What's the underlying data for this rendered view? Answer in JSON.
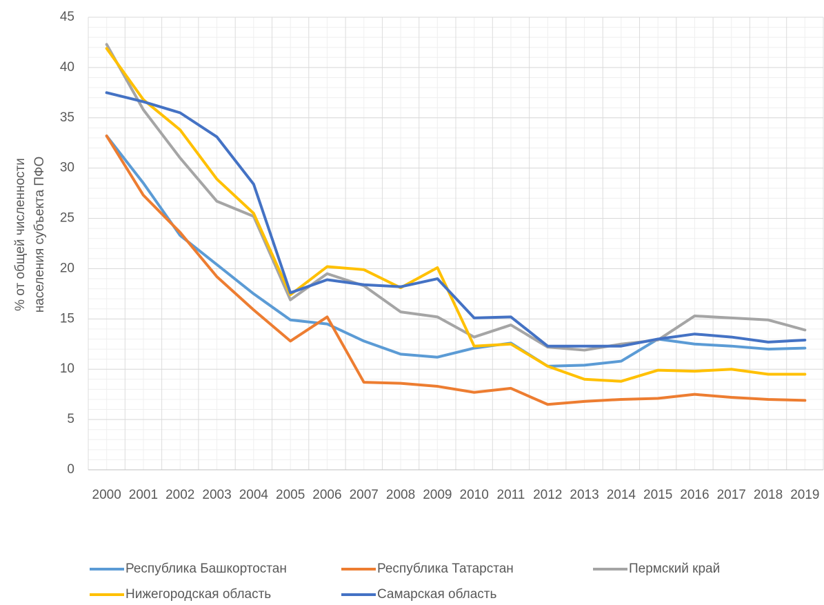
{
  "chart_data": {
    "type": "line",
    "ylabel": [
      "% от общей численности",
      "населения субъекта ПФО"
    ],
    "categories": [
      "2000",
      "2001",
      "2002",
      "2003",
      "2004",
      "2005",
      "2006",
      "2007",
      "2008",
      "2009",
      "2010",
      "2011",
      "2012",
      "2013",
      "2014",
      "2015",
      "2016",
      "2017",
      "2018",
      "2019"
    ],
    "series": [
      {
        "name": "Республика Башкортостан",
        "color": "#5b9bd5",
        "values": [
          33.2,
          28.5,
          23.3,
          20.4,
          17.5,
          14.9,
          14.5,
          12.8,
          11.5,
          11.2,
          12.1,
          12.6,
          10.3,
          10.4,
          10.8,
          13.0,
          12.5,
          12.3,
          12.0,
          12.1
        ]
      },
      {
        "name": "Республика Татарстан",
        "color": "#ed7d31",
        "values": [
          33.2,
          27.3,
          23.6,
          19.2,
          15.9,
          12.8,
          15.2,
          8.7,
          8.6,
          8.3,
          7.7,
          8.1,
          6.5,
          6.8,
          7.0,
          7.1,
          7.5,
          7.2,
          7.0,
          6.9
        ]
      },
      {
        "name": "Пермский край",
        "color": "#a5a5a5",
        "values": [
          42.3,
          35.8,
          31.0,
          26.7,
          25.2,
          16.9,
          19.5,
          18.3,
          15.7,
          15.2,
          13.2,
          14.4,
          12.2,
          11.9,
          12.5,
          12.9,
          15.3,
          15.1,
          14.9,
          13.9
        ]
      },
      {
        "name": "Нижегородская область",
        "color": "#ffc000",
        "values": [
          41.9,
          36.8,
          33.8,
          28.9,
          25.5,
          17.4,
          20.2,
          19.9,
          18.1,
          20.1,
          12.3,
          12.5,
          10.3,
          9.0,
          8.8,
          9.9,
          9.8,
          10.0,
          9.5,
          9.5
        ]
      },
      {
        "name": "Самарская область",
        "color": "#4472c4",
        "values": [
          37.5,
          36.6,
          35.5,
          33.1,
          28.4,
          17.6,
          18.9,
          18.4,
          18.2,
          19.0,
          15.1,
          15.2,
          12.3,
          12.3,
          12.3,
          13.0,
          13.5,
          13.2,
          12.7,
          12.9
        ]
      }
    ],
    "ylim": [
      0,
      45
    ],
    "yticks": [
      0,
      5,
      10,
      15,
      20,
      25,
      30,
      35,
      40,
      45
    ],
    "grid": true,
    "minor_grid": true,
    "legend": "bottom"
  }
}
